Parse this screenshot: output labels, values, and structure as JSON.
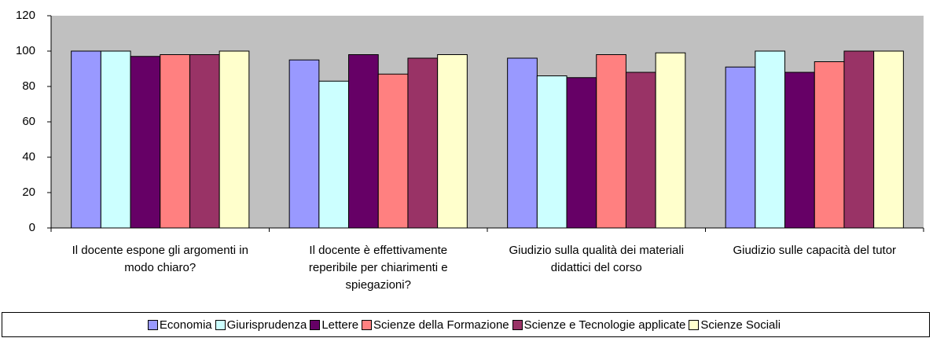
{
  "chart_data": {
    "type": "bar",
    "categories": [
      "Il docente espone gli argomenti in modo chiaro?",
      "Il docente è effettivamente reperibile per chiarimenti e spiegazioni?",
      "Giudizio sulla qualità dei materiali didattici del corso",
      "Giudizio sulle capacità del tutor"
    ],
    "series": [
      {
        "name": "Economia",
        "color": "#9999ff",
        "values": [
          100,
          95,
          96,
          91
        ]
      },
      {
        "name": "Giurisprudenza",
        "color": "#ccffff",
        "values": [
          100,
          83,
          86,
          100
        ]
      },
      {
        "name": "Lettere",
        "color": "#660066",
        "values": [
          97,
          98,
          85,
          88
        ]
      },
      {
        "name": "Scienze della Formazione",
        "color": "#ff8080",
        "values": [
          98,
          87,
          98,
          94
        ]
      },
      {
        "name": "Scienze e Tecnologie applicate",
        "color": "#993366",
        "values": [
          98,
          96,
          88,
          100
        ]
      },
      {
        "name": "Scienze Sociali",
        "color": "#ffffcc",
        "values": [
          100,
          98,
          99,
          100
        ]
      }
    ],
    "ylim": [
      0,
      120
    ],
    "yticks": [
      0,
      20,
      40,
      60,
      80,
      100,
      120
    ],
    "plot_background": "#c0c0c0",
    "legend": "bottom"
  }
}
